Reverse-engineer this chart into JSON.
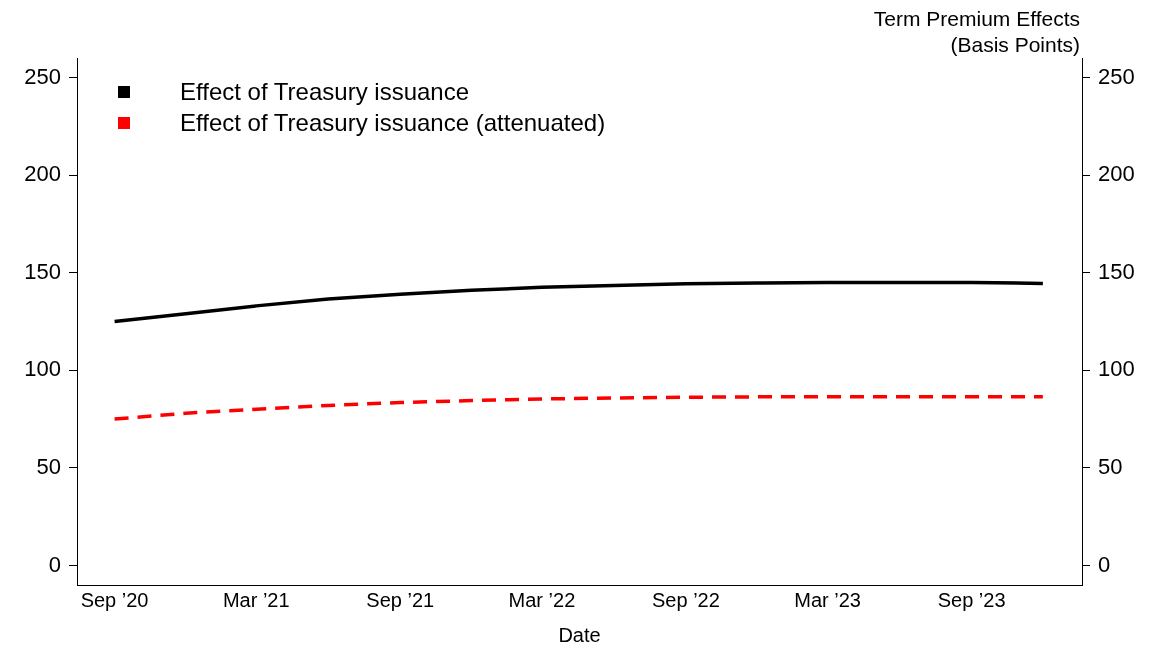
{
  "chart_data": {
    "type": "line",
    "xlabel": "Date",
    "y2label": "Term Premium Effects\n(Basis Points)",
    "x": [
      "2020-09",
      "2020-12",
      "2021-03",
      "2021-06",
      "2021-09",
      "2021-12",
      "2022-03",
      "2022-06",
      "2022-09",
      "2022-12",
      "2023-03",
      "2023-06",
      "2023-09",
      "2023-12"
    ],
    "series": [
      {
        "name": "Effect of Treasury issuance",
        "color": "#000000",
        "line_style": "solid",
        "values": [
          125,
          129,
          133,
          136.5,
          139,
          141,
          142.5,
          143.5,
          144.3,
          144.7,
          145,
          145,
          145,
          144.5
        ]
      },
      {
        "name": "Effect of Treasury issuance (attenuated)",
        "color": "#ff0000",
        "line_style": "dashed",
        "values": [
          75,
          78,
          80,
          82,
          83.5,
          84.5,
          85.3,
          85.8,
          86.2,
          86.4,
          86.5,
          86.5,
          86.5,
          86.5
        ]
      }
    ],
    "xlim": [
      "2020-07-15",
      "2024-01-20"
    ],
    "xticks": [
      {
        "value": "2020-09",
        "label": "Sep ’20"
      },
      {
        "value": "2021-03",
        "label": "Mar ’21"
      },
      {
        "value": "2021-09",
        "label": "Sep ’21"
      },
      {
        "value": "2022-03",
        "label": "Mar ’22"
      },
      {
        "value": "2022-09",
        "label": "Sep ’22"
      },
      {
        "value": "2023-03",
        "label": "Mar ’23"
      },
      {
        "value": "2023-09",
        "label": "Sep ’23"
      }
    ],
    "ylim": [
      -10,
      260
    ],
    "yticks": [
      0,
      50,
      100,
      150,
      200,
      250
    ],
    "y2lim": [
      -10,
      260
    ],
    "y2ticks": [
      0,
      50,
      100,
      150,
      200,
      250
    ],
    "legend": "top left",
    "grid": false,
    "marker": "none"
  }
}
